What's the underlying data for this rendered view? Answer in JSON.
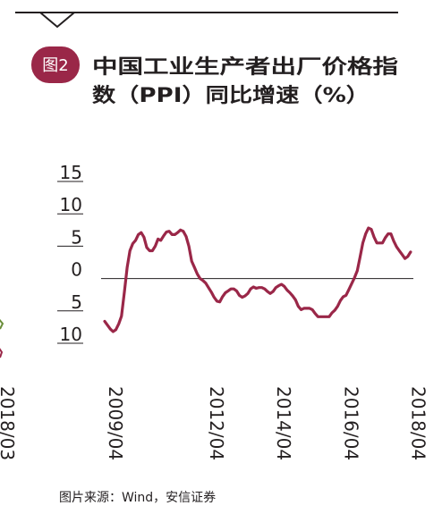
{
  "figure": {
    "badge": "图2",
    "title_lines": [
      "中国工业生产者出厂价格指",
      "数（PPI）同比增速（%）"
    ],
    "source": "图片来源：Wind，安信证券",
    "clipped_left_label": "2018/03",
    "colors": {
      "badge": "#9a2748",
      "line": "#9a2748",
      "text": "#231f20",
      "rule": "#231f20",
      "left_marker": "#6a8e3a"
    }
  },
  "chart_data": {
    "type": "line",
    "title": "中国工业生产者出厂价格指数（PPI）同比增速（%）",
    "xlabel": "",
    "ylabel": "",
    "ylim": [
      -10,
      15
    ],
    "xlim": [
      "2009/04",
      "2018/06"
    ],
    "y_ticks": [
      15,
      10,
      5,
      0,
      -5,
      -10
    ],
    "y_tick_labels": [
      "15",
      "10",
      "5",
      "0",
      "5",
      "10"
    ],
    "x_ticks": [
      "2009/04",
      "2012/04",
      "2014/04",
      "2016/04",
      "2018/04"
    ],
    "grid": false,
    "legend": "none",
    "series": [
      {
        "values": [
          {
            "x": "2009/04",
            "y": -6.6
          },
          {
            "x": "2009/05",
            "y": -7.2
          },
          {
            "x": "2009/06",
            "y": -7.8
          },
          {
            "x": "2009/07",
            "y": -8.2
          },
          {
            "x": "2009/08",
            "y": -7.9
          },
          {
            "x": "2009/09",
            "y": -7.0
          },
          {
            "x": "2009/10",
            "y": -5.8
          },
          {
            "x": "2009/11",
            "y": -2.1
          },
          {
            "x": "2009/12",
            "y": 1.7
          },
          {
            "x": "2010/01",
            "y": 4.3
          },
          {
            "x": "2010/02",
            "y": 5.4
          },
          {
            "x": "2010/03",
            "y": 5.9
          },
          {
            "x": "2010/04",
            "y": 6.8
          },
          {
            "x": "2010/05",
            "y": 7.1
          },
          {
            "x": "2010/06",
            "y": 6.4
          },
          {
            "x": "2010/07",
            "y": 4.8
          },
          {
            "x": "2010/08",
            "y": 4.3
          },
          {
            "x": "2010/09",
            "y": 4.3
          },
          {
            "x": "2010/10",
            "y": 5.0
          },
          {
            "x": "2010/11",
            "y": 6.1
          },
          {
            "x": "2010/12",
            "y": 5.9
          },
          {
            "x": "2011/01",
            "y": 6.6
          },
          {
            "x": "2011/02",
            "y": 7.2
          },
          {
            "x": "2011/03",
            "y": 7.3
          },
          {
            "x": "2011/04",
            "y": 6.8
          },
          {
            "x": "2011/05",
            "y": 6.8
          },
          {
            "x": "2011/06",
            "y": 7.1
          },
          {
            "x": "2011/07",
            "y": 7.5
          },
          {
            "x": "2011/08",
            "y": 7.3
          },
          {
            "x": "2011/09",
            "y": 6.5
          },
          {
            "x": "2011/10",
            "y": 5.0
          },
          {
            "x": "2011/11",
            "y": 2.7
          },
          {
            "x": "2011/12",
            "y": 1.7
          },
          {
            "x": "2012/01",
            "y": 0.7
          },
          {
            "x": "2012/02",
            "y": 0.0
          },
          {
            "x": "2012/03",
            "y": -0.3
          },
          {
            "x": "2012/04",
            "y": -0.7
          },
          {
            "x": "2012/05",
            "y": -1.4
          },
          {
            "x": "2012/06",
            "y": -2.1
          },
          {
            "x": "2012/07",
            "y": -2.9
          },
          {
            "x": "2012/08",
            "y": -3.5
          },
          {
            "x": "2012/09",
            "y": -3.6
          },
          {
            "x": "2012/10",
            "y": -2.8
          },
          {
            "x": "2012/11",
            "y": -2.2
          },
          {
            "x": "2012/12",
            "y": -1.9
          },
          {
            "x": "2013/01",
            "y": -1.6
          },
          {
            "x": "2013/02",
            "y": -1.6
          },
          {
            "x": "2013/03",
            "y": -1.9
          },
          {
            "x": "2013/04",
            "y": -2.6
          },
          {
            "x": "2013/05",
            "y": -2.9
          },
          {
            "x": "2013/06",
            "y": -2.7
          },
          {
            "x": "2013/07",
            "y": -2.3
          },
          {
            "x": "2013/08",
            "y": -1.6
          },
          {
            "x": "2013/09",
            "y": -1.3
          },
          {
            "x": "2013/10",
            "y": -1.5
          },
          {
            "x": "2013/11",
            "y": -1.4
          },
          {
            "x": "2013/12",
            "y": -1.4
          },
          {
            "x": "2014/01",
            "y": -1.6
          },
          {
            "x": "2014/02",
            "y": -2.0
          },
          {
            "x": "2014/03",
            "y": -2.3
          },
          {
            "x": "2014/04",
            "y": -2.0
          },
          {
            "x": "2014/05",
            "y": -1.4
          },
          {
            "x": "2014/06",
            "y": -1.1
          },
          {
            "x": "2014/07",
            "y": -0.9
          },
          {
            "x": "2014/08",
            "y": -1.2
          },
          {
            "x": "2014/09",
            "y": -1.8
          },
          {
            "x": "2014/10",
            "y": -2.2
          },
          {
            "x": "2014/11",
            "y": -2.7
          },
          {
            "x": "2014/12",
            "y": -3.3
          },
          {
            "x": "2015/01",
            "y": -4.3
          },
          {
            "x": "2015/02",
            "y": -4.8
          },
          {
            "x": "2015/03",
            "y": -4.6
          },
          {
            "x": "2015/04",
            "y": -4.6
          },
          {
            "x": "2015/05",
            "y": -4.6
          },
          {
            "x": "2015/06",
            "y": -4.8
          },
          {
            "x": "2015/07",
            "y": -5.4
          },
          {
            "x": "2015/08",
            "y": -5.9
          },
          {
            "x": "2015/09",
            "y": -5.9
          },
          {
            "x": "2015/10",
            "y": -5.9
          },
          {
            "x": "2015/11",
            "y": -5.9
          },
          {
            "x": "2015/12",
            "y": -5.9
          },
          {
            "x": "2016/01",
            "y": -5.3
          },
          {
            "x": "2016/02",
            "y": -4.9
          },
          {
            "x": "2016/03",
            "y": -4.3
          },
          {
            "x": "2016/04",
            "y": -3.4
          },
          {
            "x": "2016/05",
            "y": -2.8
          },
          {
            "x": "2016/06",
            "y": -2.6
          },
          {
            "x": "2016/07",
            "y": -1.7
          },
          {
            "x": "2016/08",
            "y": -0.8
          },
          {
            "x": "2016/09",
            "y": 0.1
          },
          {
            "x": "2016/10",
            "y": 1.2
          },
          {
            "x": "2016/11",
            "y": 3.3
          },
          {
            "x": "2016/12",
            "y": 5.5
          },
          {
            "x": "2017/01",
            "y": 6.9
          },
          {
            "x": "2017/02",
            "y": 7.8
          },
          {
            "x": "2017/03",
            "y": 7.6
          },
          {
            "x": "2017/04",
            "y": 6.4
          },
          {
            "x": "2017/05",
            "y": 5.5
          },
          {
            "x": "2017/06",
            "y": 5.5
          },
          {
            "x": "2017/07",
            "y": 5.5
          },
          {
            "x": "2017/08",
            "y": 6.3
          },
          {
            "x": "2017/09",
            "y": 6.9
          },
          {
            "x": "2017/10",
            "y": 6.9
          },
          {
            "x": "2017/11",
            "y": 5.8
          },
          {
            "x": "2017/12",
            "y": 4.9
          },
          {
            "x": "2018/01",
            "y": 4.3
          },
          {
            "x": "2018/02",
            "y": 3.7
          },
          {
            "x": "2018/03",
            "y": 3.1
          },
          {
            "x": "2018/04",
            "y": 3.4
          },
          {
            "x": "2018/05",
            "y": 4.1
          }
        ]
      }
    ]
  }
}
